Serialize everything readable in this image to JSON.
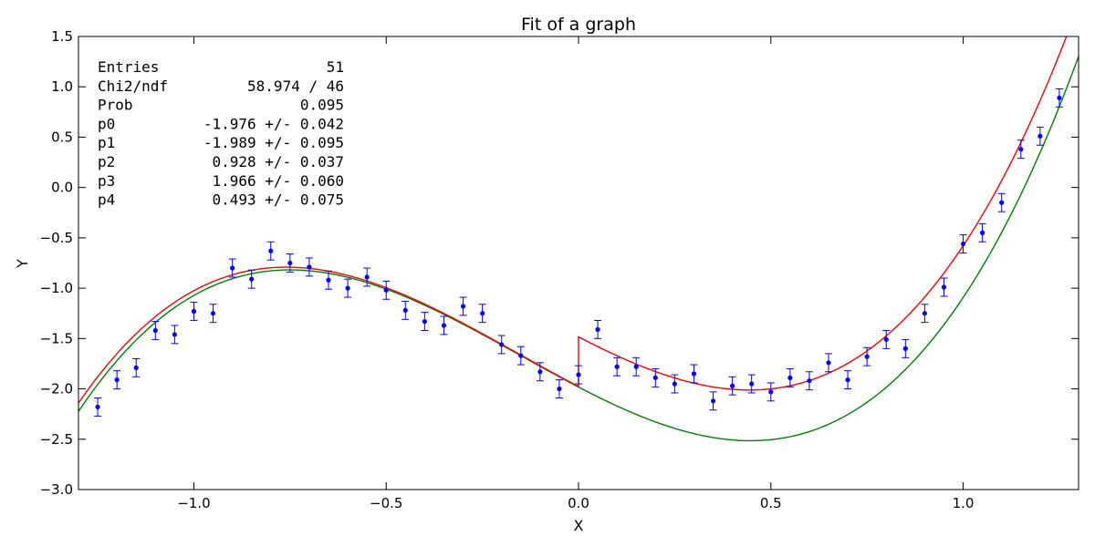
{
  "chart_data": {
    "type": "scatter",
    "title": "Fit of a graph",
    "xlabel": "X",
    "ylabel": "Y",
    "xlim": [
      -1.3,
      1.3
    ],
    "ylim": [
      -3.0,
      1.5
    ],
    "xticks": [
      -1.0,
      -0.5,
      0.0,
      0.5,
      1.0
    ],
    "xtick_labels": [
      "−1.0",
      "−0.5",
      "0.0",
      "0.5",
      "1.0"
    ],
    "yticks": [
      -3.0,
      -2.5,
      -2.0,
      -1.5,
      -1.0,
      -0.5,
      0.0,
      0.5,
      1.0,
      1.5
    ],
    "ytick_labels": [
      "−3.0",
      "−2.5",
      "−2.0",
      "−1.5",
      "−1.0",
      "−0.5",
      "0.0",
      "0.5",
      "1.0",
      "1.5"
    ],
    "grid": false,
    "colors": {
      "points": "#0000ff",
      "fit_red": "#ff0000",
      "fit_green": "#008000",
      "frame": "#000000"
    },
    "stats": [
      {
        "label": "Entries",
        "value": "51"
      },
      {
        "label": "Chi2/ndf",
        "value": "58.974 / 46"
      },
      {
        "label": "Prob",
        "value": "0.095"
      },
      {
        "label": "p0",
        "value": "-1.976 +/- 0.042"
      },
      {
        "label": "p1",
        "value": "-1.989 +/- 0.095"
      },
      {
        "label": "p2",
        "value": "0.928 +/- 0.037"
      },
      {
        "label": "p3",
        "value": "1.966 +/- 0.060"
      },
      {
        "label": "p4",
        "value": "0.493 +/- 0.075"
      }
    ],
    "points": {
      "x": [
        -1.25,
        -1.2,
        -1.15,
        -1.1,
        -1.05,
        -1.0,
        -0.95,
        -0.9,
        -0.85,
        -0.8,
        -0.75,
        -0.7,
        -0.65,
        -0.6,
        -0.55,
        -0.5,
        -0.45,
        -0.4,
        -0.35,
        -0.3,
        -0.25,
        -0.2,
        -0.15,
        -0.1,
        -0.05,
        0.0,
        0.05,
        0.1,
        0.15,
        0.2,
        0.25,
        0.3,
        0.35,
        0.4,
        0.45,
        0.5,
        0.55,
        0.6,
        0.65,
        0.7,
        0.75,
        0.8,
        0.85,
        0.9,
        0.95,
        1.0,
        1.05,
        1.1,
        1.15,
        1.2,
        1.25
      ],
      "y": [
        -2.18,
        -1.91,
        -1.79,
        -1.42,
        -1.46,
        -1.23,
        -1.25,
        -0.8,
        -0.91,
        -0.63,
        -0.75,
        -0.79,
        -0.92,
        -1.0,
        -0.89,
        -1.02,
        -1.22,
        -1.33,
        -1.37,
        -1.18,
        -1.25,
        -1.56,
        -1.67,
        -1.83,
        -2.0,
        -1.86,
        -1.41,
        -1.78,
        -1.78,
        -1.89,
        -1.95,
        -1.85,
        -2.12,
        -1.97,
        -1.95,
        -2.03,
        -1.89,
        -1.92,
        -1.74,
        -1.91,
        -1.68,
        -1.51,
        -1.6,
        -1.25,
        -0.99,
        -0.56,
        -0.45,
        -0.15,
        0.38,
        0.51,
        0.89
      ],
      "yerr": 0.09
    },
    "fits": [
      {
        "color": "#008000",
        "kind": "polynomial",
        "coefficients": [
          -1.982,
          -1.99,
          0.9,
          1.98
        ]
      },
      {
        "color": "#ff0000",
        "kind": "polynomial_with_step",
        "coefficients": [
          -1.976,
          -1.989,
          0.928,
          1.966
        ],
        "step_at_x": 0.0,
        "step_height": 0.493
      }
    ]
  }
}
